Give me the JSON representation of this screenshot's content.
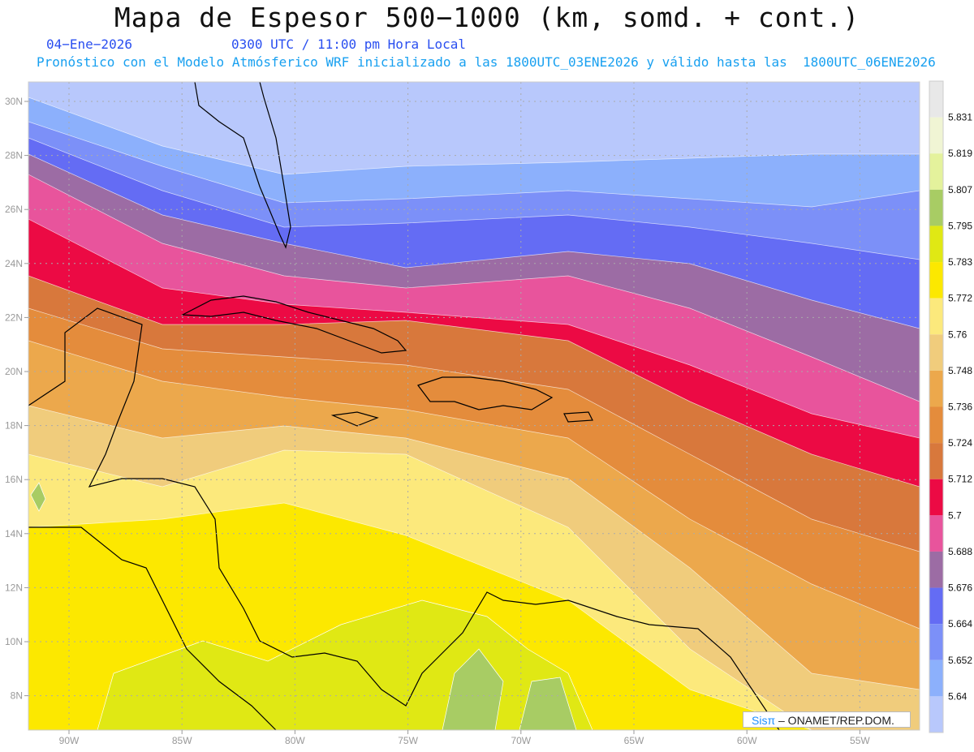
{
  "header": {
    "title": "Mapa de Espesor 500−1000 (km, somd. + cont.)",
    "date": "04−Ene−2026",
    "time": "0300 UTC / 11:00 pm Hora Local",
    "forecast": "Pronóstico con el Modelo Atmósferico WRF inicializado a las 1800UTC_03ENE2026 y válido hasta las  1800UTC_06ENE2026"
  },
  "axes": {
    "lat_labels": [
      "30N",
      "28N",
      "26N",
      "24N",
      "22N",
      "20N",
      "18N",
      "16N",
      "14N",
      "12N",
      "10N",
      "8N"
    ],
    "lon_labels": [
      "90W",
      "85W",
      "80W",
      "75W",
      "70W",
      "65W",
      "60W",
      "55W"
    ]
  },
  "colorbar": {
    "labels": [
      "5.831",
      "5.819",
      "5.807",
      "5.795",
      "5.783",
      "5.772",
      "5.76",
      "5.748",
      "5.736",
      "5.724",
      "5.712",
      "5.7",
      "5.688",
      "5.676",
      "5.664",
      "5.652",
      "5.64"
    ],
    "colors": [
      "#e8e8e8",
      "#f0f5d4",
      "#e4f29c",
      "#a8cc64",
      "#e0e814",
      "#fce800",
      "#fce97c",
      "#f0cc7c",
      "#eca84c",
      "#e48c3c",
      "#d8783c",
      "#ec0a44",
      "#e8549c",
      "#9c6ca4",
      "#646cf4",
      "#7c90f8",
      "#8cb0fc",
      "#b8c8fc"
    ]
  },
  "logo": {
    "brand": "Sisπ",
    "text": "– ONAMET/REP.DOM."
  }
}
